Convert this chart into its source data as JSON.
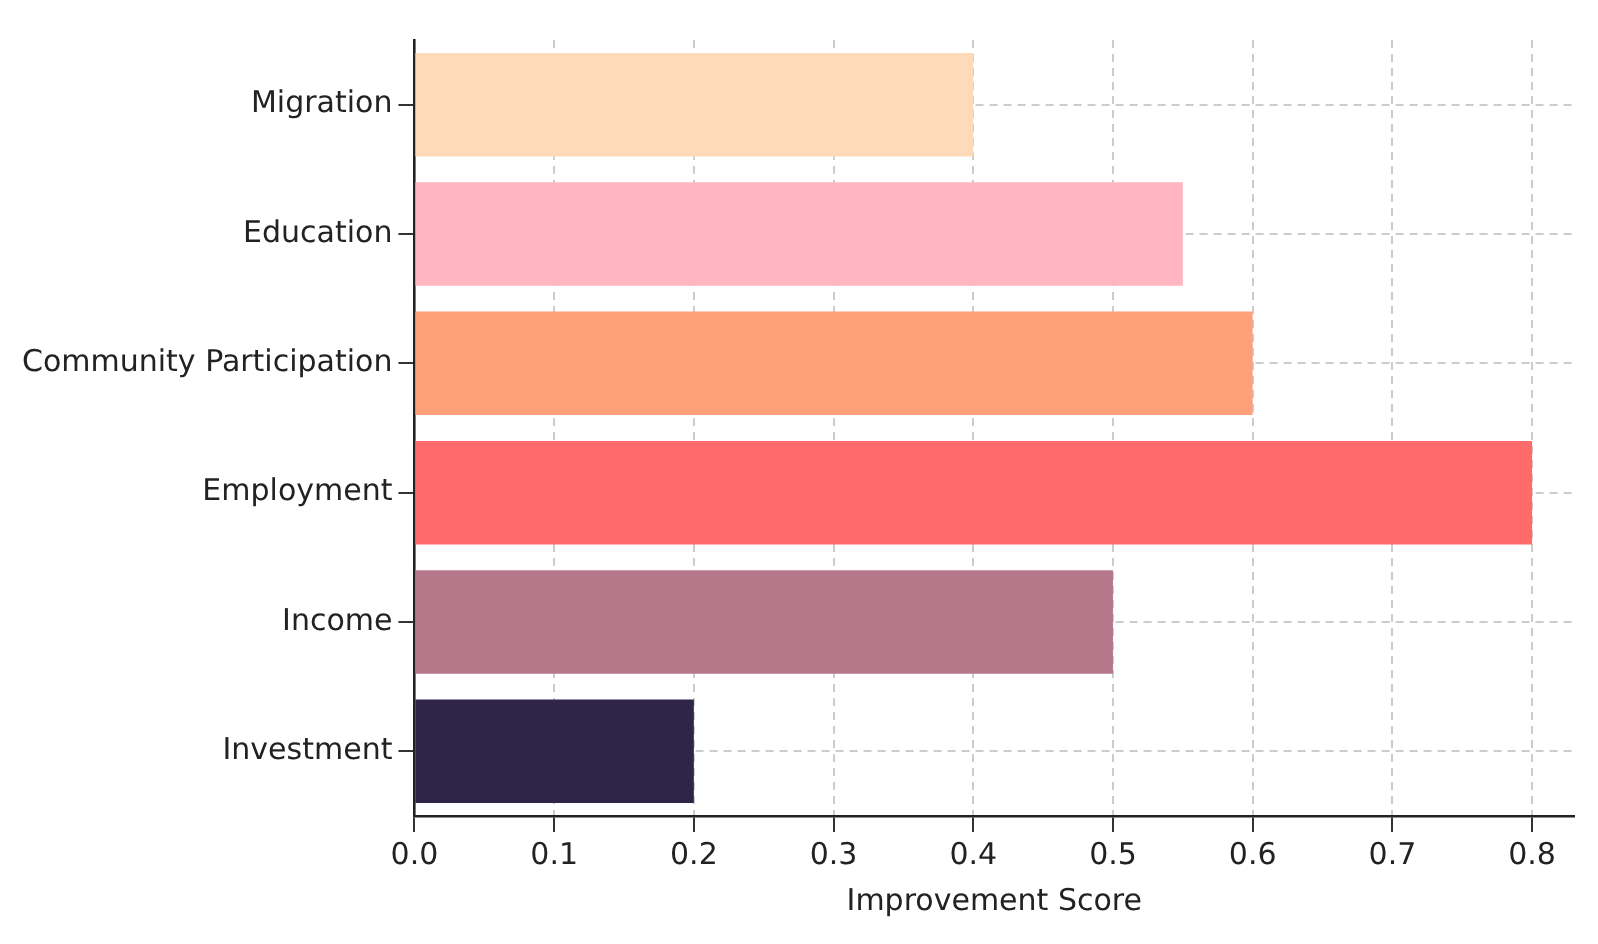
{
  "chart_data": {
    "type": "bar",
    "orientation": "horizontal",
    "xlabel": "Improvement Score",
    "categories": [
      "Migration",
      "Education",
      "Community Participation",
      "Employment",
      "Income",
      "Investment"
    ],
    "values": [
      0.4,
      0.55,
      0.6,
      0.8,
      0.5,
      0.2
    ],
    "colors": [
      "#ffdab9",
      "#ffb6c1",
      "#ffa07a",
      "#ff6b6b",
      "#b5788a",
      "#2e2549"
    ],
    "xlim": [
      0,
      0.83
    ],
    "xticks": [
      {
        "value": 0,
        "label": "0.0"
      },
      0.1,
      0.2,
      0.3,
      0.4,
      0.5,
      0.6,
      0.7,
      0.8
    ],
    "grid": true
  }
}
